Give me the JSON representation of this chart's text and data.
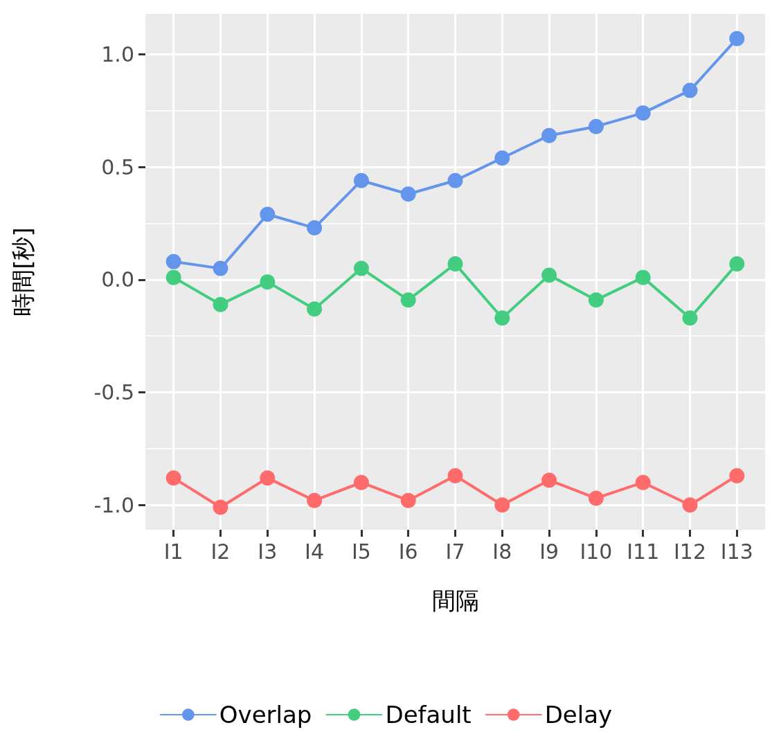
{
  "chart_data": {
    "type": "line",
    "xlabel": "間隔",
    "ylabel": "時間[秒]",
    "categories": [
      "I1",
      "I2",
      "I3",
      "I4",
      "I5",
      "I6",
      "I7",
      "I8",
      "I9",
      "I10",
      "I11",
      "I12",
      "I13"
    ],
    "series": [
      {
        "name": "Overlap",
        "color": "#6495ed",
        "values": [
          0.08,
          0.05,
          0.29,
          0.23,
          0.44,
          0.38,
          0.44,
          0.54,
          0.64,
          0.68,
          0.74,
          0.84,
          1.07
        ]
      },
      {
        "name": "Default",
        "color": "#43cd80",
        "values": [
          0.01,
          -0.11,
          -0.01,
          -0.13,
          0.05,
          -0.09,
          0.07,
          -0.17,
          0.02,
          -0.09,
          0.01,
          -0.17,
          0.07
        ]
      },
      {
        "name": "Delay",
        "color": "#ff6a6a",
        "values": [
          -0.88,
          -1.01,
          -0.88,
          -0.98,
          -0.9,
          -0.98,
          -0.87,
          -1.0,
          -0.89,
          -0.97,
          -0.9,
          -1.0,
          -0.87
        ]
      }
    ],
    "ylim": [
      -1.11,
      1.18
    ],
    "yticks": [
      {
        "value": -1,
        "label": "-1.0"
      },
      {
        "value": -0.75,
        "label": null
      },
      {
        "value": -0.5,
        "label": "-0.5"
      },
      {
        "value": -0.25,
        "label": null
      },
      {
        "value": 0,
        "label": "0.0"
      },
      {
        "value": 0.25,
        "label": null
      },
      {
        "value": 0.5,
        "label": "0.5"
      },
      {
        "value": 0.75,
        "label": null
      },
      {
        "value": 1,
        "label": "1.0"
      }
    ],
    "grid": true,
    "legend": "bottom",
    "marker": "circle",
    "line_style": "solid"
  }
}
